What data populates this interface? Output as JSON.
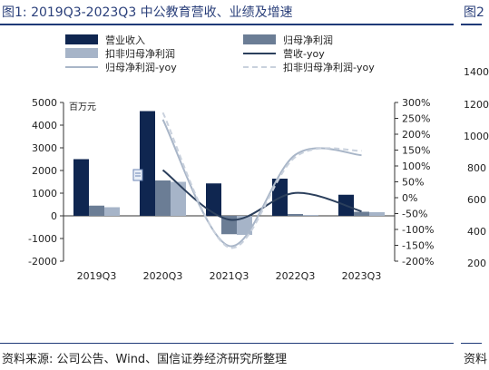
{
  "title": "图1: 2019Q3-2023Q3 中公教育营收、业绩及增速",
  "source": "资料来源: 公司公告、Wind、国信证券经济研究所整理",
  "right_panel": {
    "title_fragment": "图2",
    "source_fragment": "资料",
    "tick_fragments": [
      "1400",
      "1200",
      "1000",
      "800",
      "600",
      "400",
      "200"
    ]
  },
  "chart_data": {
    "type": "bar",
    "categories": [
      "2019Q3",
      "2020Q3",
      "2021Q3",
      "2022Q3",
      "2023Q3"
    ],
    "unit_label": "百万元",
    "y_left": {
      "ticks": [
        5000,
        4000,
        3000,
        2000,
        1000,
        0,
        -1000,
        -2000
      ],
      "lim": [
        -2000,
        5000
      ]
    },
    "y_right": {
      "ticks": [
        "300%",
        "250%",
        "200%",
        "150%",
        "100%",
        "50%",
        "0%",
        "-50%",
        "-100%",
        "-150%",
        "-200%"
      ],
      "lim": [
        -200,
        300
      ]
    },
    "series": [
      {
        "name": "营业收入",
        "kind": "bar",
        "color": "#0f2650",
        "values": [
          2500,
          4620,
          1430,
          1640,
          930
        ]
      },
      {
        "name": "归母净利润",
        "kind": "bar",
        "color": "#6b7d95",
        "values": [
          450,
          1560,
          -810,
          80,
          180
        ]
      },
      {
        "name": "扣非归母净利润",
        "kind": "bar",
        "color": "#a6b4c8",
        "values": [
          380,
          1500,
          -840,
          40,
          160
        ]
      },
      {
        "name": "营收-yoy",
        "kind": "line",
        "color": "#2b3f5c",
        "values": [
          null,
          87,
          -69,
          15,
          -43
        ]
      },
      {
        "name": "归母净利润-yoy",
        "kind": "line",
        "color": "#a9b6c8",
        "values": [
          null,
          246,
          -152,
          135,
          134
        ]
      },
      {
        "name": "扣非归母净利润-yoy",
        "kind": "line",
        "color": "#c9d1dd",
        "dashed": true,
        "values": [
          null,
          268,
          -157,
          128,
          148
        ]
      }
    ]
  }
}
